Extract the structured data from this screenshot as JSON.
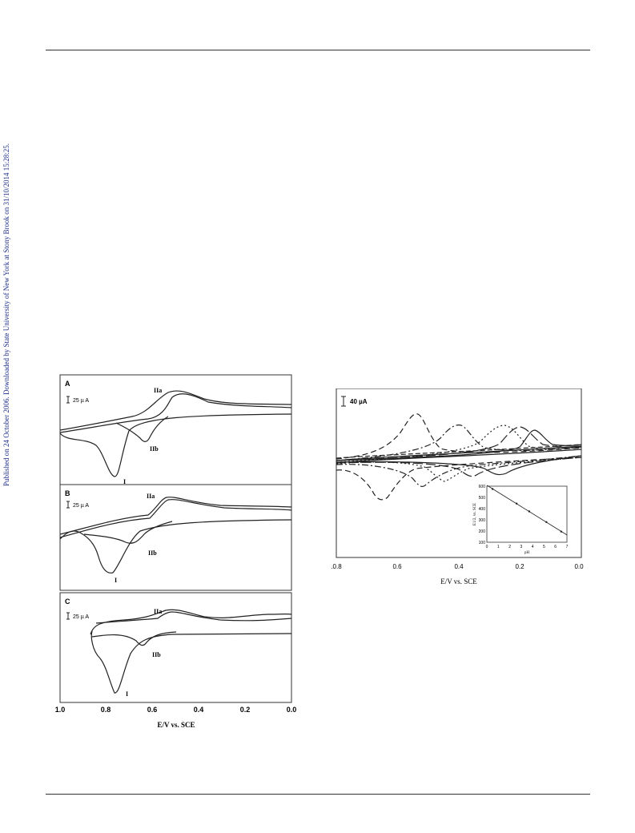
{
  "side_note": "Published on 24 October 2006. Downloaded by State University of New York at Stony Brook on 31/10/2014 15:28:25.",
  "colors": {
    "line": "#222222",
    "side_note": "#1a2a88"
  },
  "chart_data": [
    {
      "type": "line",
      "panel": "A",
      "scale_bar": "25 µ A",
      "peak_labels": [
        "IIa",
        "IIb",
        "I"
      ],
      "xlim": [
        1.0,
        0.0
      ],
      "peaks": [
        {
          "label": "I",
          "x": 0.77
        },
        {
          "label": "IIa",
          "x": 0.55
        },
        {
          "label": "IIb",
          "x": 0.64
        }
      ]
    },
    {
      "type": "line",
      "panel": "B",
      "scale_bar": "25 µ A",
      "peak_labels": [
        "IIa",
        "IIb",
        "I"
      ],
      "xlim": [
        1.0,
        0.0
      ],
      "peaks": [
        {
          "label": "I",
          "x": 0.82
        },
        {
          "label": "IIa",
          "x": 0.55
        },
        {
          "label": "IIb",
          "x": 0.68
        }
      ]
    },
    {
      "type": "line",
      "panel": "C",
      "scale_bar": "25 µ A",
      "peak_labels": [
        "IIa",
        "IIb",
        "I"
      ],
      "xlim": [
        1.0,
        0.0
      ],
      "xticks": [
        "1.0",
        "0.8",
        "0.6",
        "0.4",
        "0.2",
        "0.0"
      ],
      "xlabel": "E/V vs. SCE",
      "peaks": [
        {
          "label": "I",
          "x": 0.76
        },
        {
          "label": "IIa",
          "x": 0.55
        },
        {
          "label": "IIb",
          "x": 0.65
        }
      ]
    },
    {
      "type": "line",
      "scale_bar": "40 µA",
      "xlim": [
        0.8,
        0.0
      ],
      "xticks": [
        ".0.8",
        "0.6",
        "0.4",
        "0.2",
        "0.0"
      ],
      "xlabel": "E/V vs. SCE",
      "series_styles": [
        "dashed",
        "dash-dot",
        "dotted",
        "long-dash",
        "solid"
      ],
      "anodic_peaks_x": [
        0.53,
        0.37,
        0.25,
        0.22,
        0.16
      ],
      "cathodic_peaks_x": [
        0.63,
        0.52,
        0.44,
        0.34,
        0.27
      ]
    },
    {
      "type": "scatter",
      "inset": true,
      "xlabel": "pH",
      "ylabel": "E1/2, vs. SCE",
      "xlim": [
        0,
        7
      ],
      "ylim": [
        100,
        600
      ],
      "xticks": [
        "0",
        "1",
        "2",
        "3",
        "4",
        "5",
        "6",
        "7"
      ],
      "yticks": [
        "100",
        "200",
        "300",
        "400",
        "500",
        "600"
      ],
      "x": [
        0.5,
        2.6,
        3.7,
        5.2,
        6.5
      ],
      "y": [
        575,
        445,
        375,
        280,
        195
      ]
    }
  ]
}
